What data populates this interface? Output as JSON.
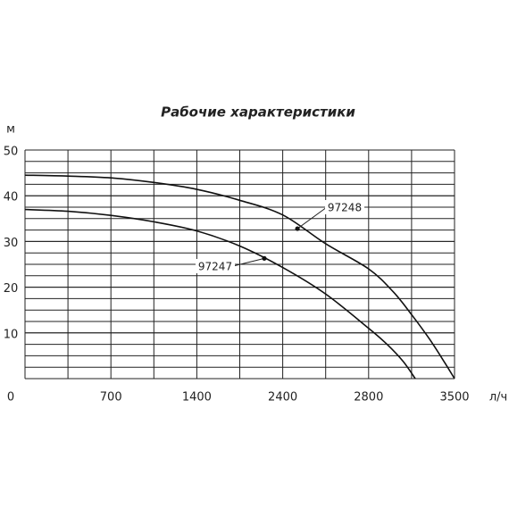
{
  "chart_data": {
    "type": "line",
    "title": "Рабочие характеристики",
    "y_unit": "м",
    "x_unit": "л/ч",
    "xlim": [
      0,
      3500
    ],
    "ylim": [
      0,
      50
    ],
    "yticks": [
      10,
      20,
      30,
      40,
      50
    ],
    "x_tick_labels": [
      "0",
      "700",
      "1400",
      "2400",
      "2800",
      "3500"
    ],
    "series": [
      {
        "name": "97248",
        "color": "#111111",
        "x": [
          0,
          350,
          700,
          1050,
          1400,
          1750,
          2100,
          2450,
          2800,
          3000,
          3150,
          3300,
          3420,
          3500
        ],
        "values": [
          44.5,
          44.3,
          43.9,
          42.9,
          41.4,
          39.0,
          35.8,
          29.5,
          24.0,
          19.0,
          14.0,
          8.5,
          3.5,
          0
        ],
        "point": {
          "x": 2220,
          "y": 32.8
        }
      },
      {
        "name": "97247",
        "color": "#111111",
        "x": [
          0,
          350,
          700,
          1050,
          1400,
          1750,
          2100,
          2450,
          2800,
          2950,
          3080,
          3180
        ],
        "values": [
          37,
          36.6,
          35.7,
          34.3,
          32.3,
          29.0,
          24.3,
          18.5,
          11.0,
          7.5,
          3.8,
          0
        ],
        "point": {
          "x": 1950,
          "y": 26.3
        }
      }
    ]
  }
}
